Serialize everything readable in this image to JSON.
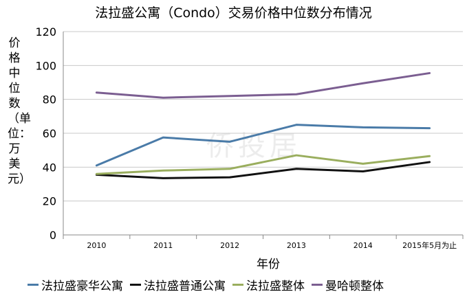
{
  "chart_data": {
    "type": "line",
    "title": "法拉盛公寓（Condo）交易价格中位数分布情况",
    "ylabel": "价格中位数（单位：万美元）",
    "xlabel": "年份",
    "categories": [
      "2010",
      "2011",
      "2012",
      "2013",
      "2014",
      "2015年5月为止"
    ],
    "yticks": [
      "0",
      "20",
      "40",
      "60",
      "80",
      "100",
      "120"
    ],
    "ylim": [
      0,
      120
    ],
    "grid": true,
    "legend_position": "bottom",
    "series": [
      {
        "name": "法拉盛豪华公寓",
        "color": "#4a7ba8",
        "values": [
          41,
          57.5,
          55,
          65,
          63.5,
          63
        ]
      },
      {
        "name": "法拉盛普通公寓",
        "color": "#111111",
        "values": [
          35.5,
          33.5,
          34,
          39,
          37.5,
          43
        ]
      },
      {
        "name": "法拉盛整体",
        "color": "#9aae5e",
        "values": [
          36,
          38,
          39,
          47,
          42,
          46.5
        ]
      },
      {
        "name": "曼哈顿整体",
        "color": "#7b5e91",
        "values": [
          84,
          81,
          82,
          83,
          89.5,
          95.5
        ]
      }
    ]
  },
  "watermark": "侨投居"
}
